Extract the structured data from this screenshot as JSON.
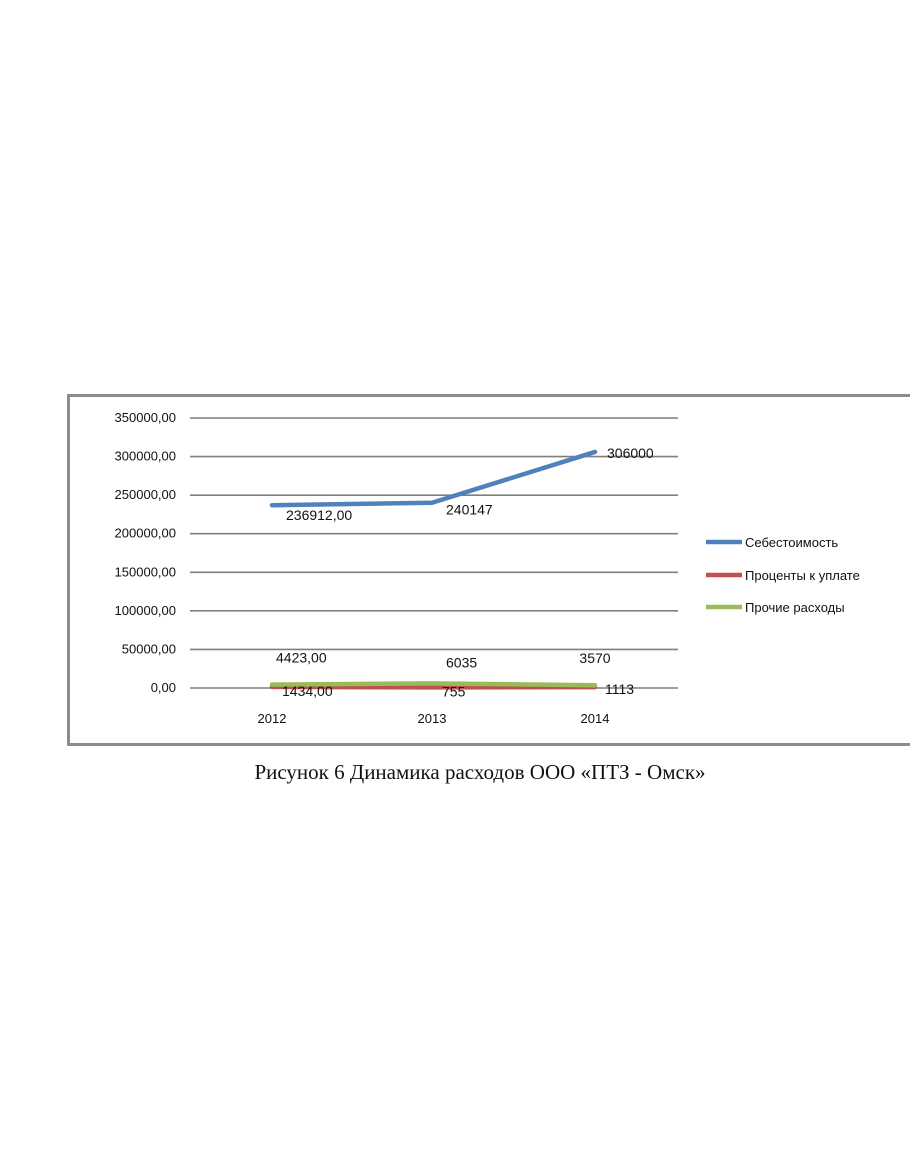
{
  "caption": "Рисунок 6 Динамика расходов ООО «ПТЗ - Омск»",
  "chart_data": {
    "type": "line",
    "categories": [
      "2012",
      "2013",
      "2014"
    ],
    "ylim": [
      0,
      350000
    ],
    "y_ticks": [
      0,
      50000,
      100000,
      150000,
      200000,
      250000,
      300000,
      350000
    ],
    "y_tick_labels": [
      "0,00",
      "50000,00",
      "100000,00",
      "150000,00",
      "200000,00",
      "250000,00",
      "300000,00",
      "350000,00"
    ],
    "grid": true,
    "legend_position": "right",
    "series": [
      {
        "name": "Себестоимость",
        "color": "#4f81bd",
        "values": [
          236912,
          240147,
          306000
        ],
        "labels": [
          "236912,00",
          "240147",
          "306000"
        ]
      },
      {
        "name": "Проценты к уплате",
        "color": "#c0504d",
        "values": [
          1434,
          755,
          1113
        ],
        "labels": [
          "1434,00",
          "755",
          "1113"
        ]
      },
      {
        "name": "Прочие расходы",
        "color": "#9bbb59",
        "values": [
          4423,
          6035,
          3570
        ],
        "labels": [
          "4423,00",
          "6035",
          "3570"
        ]
      }
    ]
  }
}
